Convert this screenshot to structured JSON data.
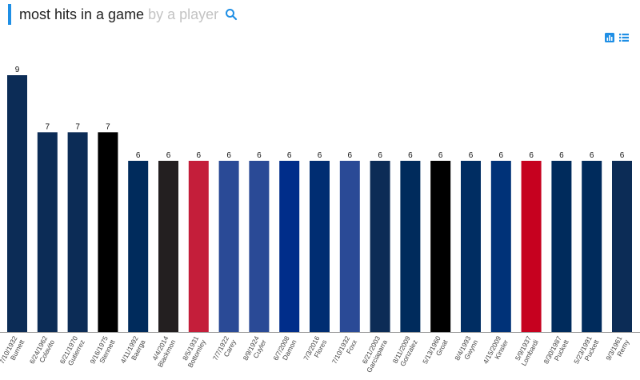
{
  "search": {
    "query": "most hits in a game",
    "hint": "by a player"
  },
  "icons": {
    "search": "search-icon",
    "bar_view": "bar-chart-icon",
    "list_view": "list-icon"
  },
  "colors": {
    "accent": "#1f8fe5"
  },
  "chart_data": {
    "type": "bar",
    "categories": [
      "7/10/1932 Burnett",
      "6/24/1962 Colavito",
      "6/21/1970 Gutierrez",
      "9/16/1975 Stennett",
      "4/11/1992 Baerga",
      "4/4/2014 Blackmon",
      "8/5/1931 Bottomley",
      "7/7/1922 Carey",
      "8/9/1924 Cuyler",
      "6/7/2008 Damon",
      "7/3/2016 Flores",
      "7/10/1932 Foxx",
      "6/21/2003 Garciaparra",
      "8/11/2009 Gonzalez",
      "5/13/1960 Groat",
      "8/4/1993 Gwynn",
      "4/15/2009 Kinsler",
      "5/9/1937 Lombardi",
      "8/30/1987 Puckett",
      "5/23/1991 Puckett",
      "9/3/1961 Remy"
    ],
    "dates": [
      "7/10/1932",
      "6/24/1962",
      "6/21/1970",
      "9/16/1975",
      "4/11/1992",
      "4/4/2014",
      "8/5/1931",
      "7/7/1922",
      "8/9/1924",
      "6/7/2008",
      "7/3/2016",
      "7/10/1932",
      "6/21/2003",
      "8/11/2009",
      "5/13/1960",
      "8/4/1993",
      "4/15/2009",
      "5/9/1937",
      "8/30/1987",
      "5/23/1991",
      "9/3/1961"
    ],
    "players": [
      "Burnett",
      "Colavito",
      "Gutierrez",
      "Stennett",
      "Baerga",
      "Blackmon",
      "Bottomley",
      "Carey",
      "Cuyler",
      "Damon",
      "Flores",
      "Foxx",
      "Garciaparra",
      "Gonzalez",
      "Groat",
      "Gwynn",
      "Kinsler",
      "Lombardi",
      "Puckett",
      "Puckett",
      "Remy"
    ],
    "values": [
      9,
      7,
      7,
      7,
      6,
      6,
      6,
      6,
      6,
      6,
      6,
      6,
      6,
      6,
      6,
      6,
      6,
      6,
      6,
      6,
      6
    ],
    "colors": [
      "#0c2c56",
      "#0c2c56",
      "#0c2c56",
      "#000000",
      "#002b5c",
      "#231f20",
      "#c41e3a",
      "#2a4a96",
      "#2a4a96",
      "#002d8a",
      "#002d72",
      "#2a4a96",
      "#0c2c56",
      "#002b5c",
      "#000000",
      "#002d62",
      "#003278",
      "#c6011f",
      "#002b5c",
      "#002b5c",
      "#0c2c56"
    ],
    "ylim": [
      0,
      9
    ],
    "grid": false
  }
}
